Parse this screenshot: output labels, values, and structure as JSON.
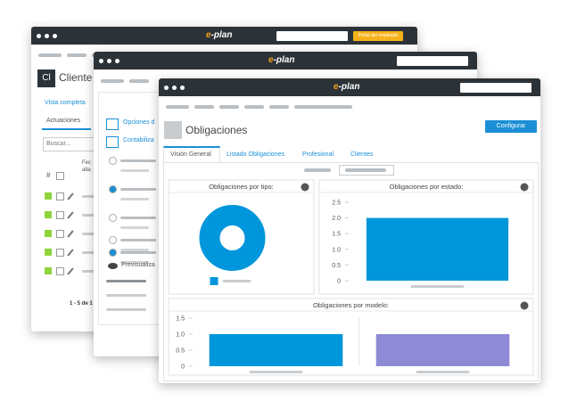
{
  "back_window": {
    "logo": "e-plan",
    "portal_button": "Portal del empleado",
    "avatar": "Cl",
    "title": "Cliente",
    "view_link": "Vista completa",
    "tab": "Actuaciones",
    "search_placeholder": "Buscar...",
    "column_hash": "#",
    "column_date": [
      "Fec",
      "alta"
    ],
    "pagination": "1 - 5 de 1"
  },
  "middle_window": {
    "logo": "e-plan",
    "options_link": "Opciones d",
    "accounting_link": "Contabiliza",
    "preview_link": "Previsualiza"
  },
  "front_window": {
    "logo": "e-plan",
    "title": "Obligaciones",
    "configure_button": "Configurar",
    "tabs": [
      "Visión General",
      "Listado Obligaciones",
      "Profesional",
      "Clientes"
    ]
  },
  "chart_data": [
    {
      "type": "pie",
      "title": "Obligaciones por tipo:",
      "categories": [
        null
      ],
      "values": [
        1
      ],
      "colors": [
        "#0096db"
      ],
      "donut": true
    },
    {
      "type": "bar",
      "title": "Obligaciones por estado:",
      "categories": [
        null
      ],
      "values": [
        2
      ],
      "colors": [
        "#0096db"
      ],
      "ylim": [
        0,
        2.5
      ],
      "yticks": [
        0,
        0.5,
        {
          "value": 1,
          "label": "1.0"
        },
        1.5,
        {
          "value": 2,
          "label": "2.0"
        },
        2.5
      ],
      "grid": false
    },
    {
      "type": "bar",
      "title": "Obligaciones por modelo:",
      "categories": [
        null,
        null
      ],
      "values": [
        1,
        1
      ],
      "colors": [
        "#0096db",
        "#8e8ad6"
      ],
      "ylim": [
        0,
        1.5
      ],
      "yticks": [
        0,
        0.5,
        {
          "value": 1,
          "label": "1.0"
        },
        1.5
      ],
      "grid": false
    }
  ]
}
